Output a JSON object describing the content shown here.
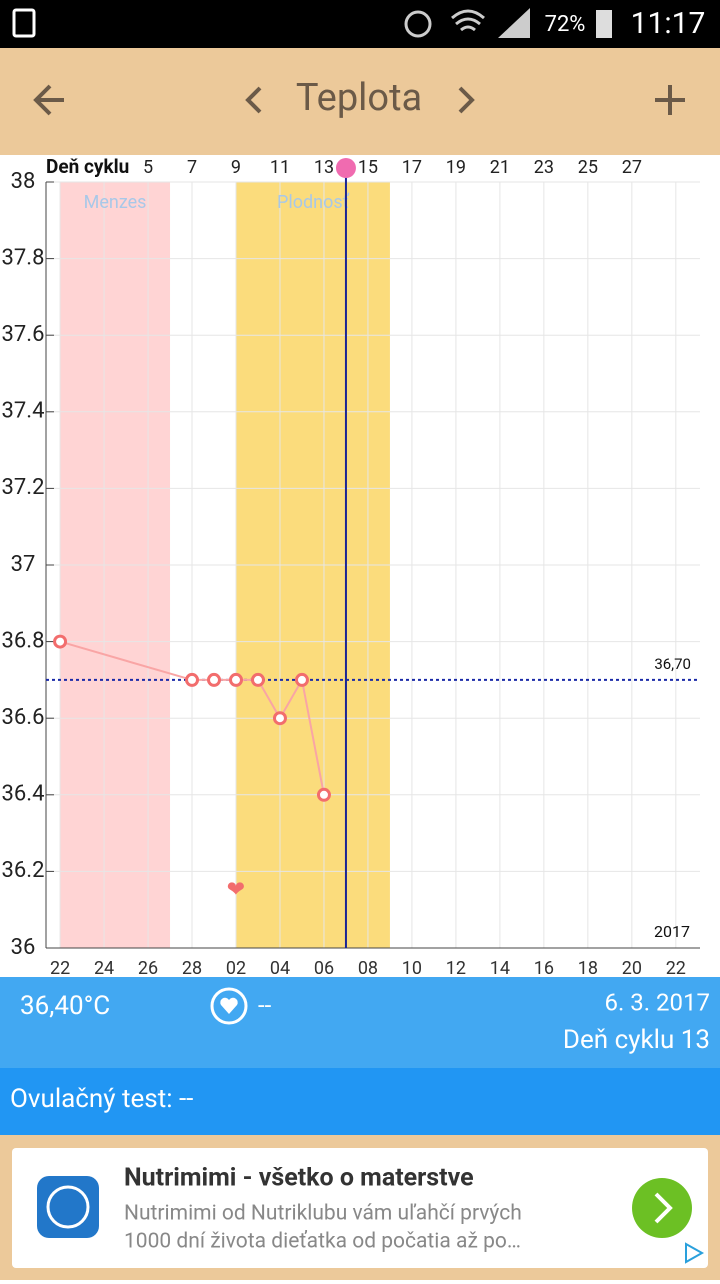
{
  "status_bar": {
    "battery": "72%",
    "time": "11:17"
  },
  "header": {
    "title": "Teplota"
  },
  "chart_data": {
    "type": "line",
    "top_axis_label": "Deň cyklu",
    "top_ticks": [
      {
        "value": 4,
        "label": "5"
      },
      {
        "value": 6,
        "label": "7"
      },
      {
        "value": 8,
        "label": "9"
      },
      {
        "value": 10,
        "label": "11"
      },
      {
        "value": 12,
        "label": "13"
      },
      {
        "value": 14,
        "label": "15"
      },
      {
        "value": 16,
        "label": "17"
      },
      {
        "value": 18,
        "label": "19"
      },
      {
        "value": 20,
        "label": "21"
      },
      {
        "value": 22,
        "label": "23"
      },
      {
        "value": 24,
        "label": "25"
      },
      {
        "value": 26,
        "label": "27"
      }
    ],
    "x": [
      0,
      6,
      7,
      8,
      9,
      10,
      11,
      12
    ],
    "series": [
      {
        "color": "#f26d6d",
        "values": [
          36.8,
          36.7,
          36.7,
          36.7,
          36.7,
          36.6,
          36.7,
          36.4
        ]
      }
    ],
    "bands": [
      {
        "label": "Menzes",
        "range": [
          0,
          5
        ],
        "color": "#ffd4d4"
      },
      {
        "label": "Plodnosť",
        "range": [
          8,
          15
        ],
        "color": "#fbdc7c"
      }
    ],
    "average": {
      "value": 36.7,
      "label": "36,70"
    },
    "today_x": 13,
    "heart_x": 8,
    "heart_y": 36.15,
    "year": "2017",
    "xlim": [
      -0.64,
      29.1
    ],
    "ylim": [
      36,
      38
    ],
    "xticks": [
      {
        "value": 0,
        "label": "22"
      },
      {
        "value": 2,
        "label": "24"
      },
      {
        "value": 4,
        "label": "26"
      },
      {
        "value": 6,
        "label": "28"
      },
      {
        "value": 8,
        "label": "02"
      },
      {
        "value": 10,
        "label": "04"
      },
      {
        "value": 12,
        "label": "06"
      },
      {
        "value": 14,
        "label": "08"
      },
      {
        "value": 16,
        "label": "10"
      },
      {
        "value": 18,
        "label": "12"
      },
      {
        "value": 20,
        "label": "14"
      },
      {
        "value": 22,
        "label": "16"
      },
      {
        "value": 24,
        "label": "18"
      },
      {
        "value": 26,
        "label": "20"
      },
      {
        "value": 28,
        "label": "22"
      }
    ],
    "yticks": [
      36,
      36.2,
      36.4,
      36.6,
      36.8,
      37,
      37.2,
      37.4,
      37.6,
      37.8,
      38
    ],
    "grid": true
  },
  "info": {
    "temperature": "36,40°C",
    "ovulation_marker": "--",
    "date": "6. 3. 2017",
    "cycle_day": "Deň cyklu 13"
  },
  "ovulation_test": "Ovulačný test: --",
  "ad": {
    "title": "Nutrimimi - všetko o materstve",
    "line1": "Nutrimimi od Nutriklubu vám uľahčí prvých",
    "line2": "1000 dní života dieťatka od počatia až po…"
  }
}
